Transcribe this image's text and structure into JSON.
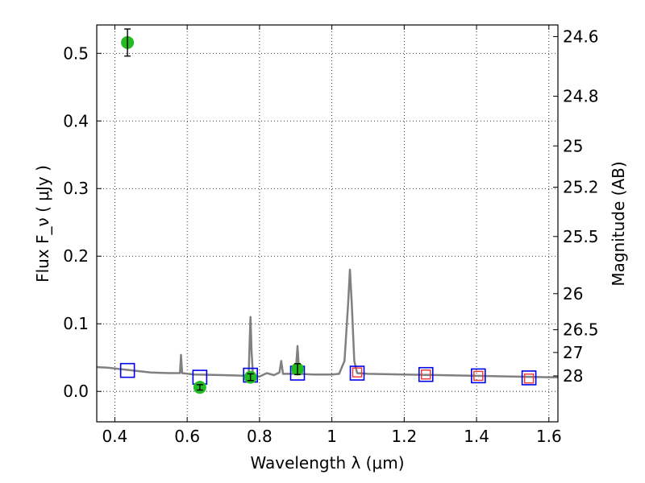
{
  "chart_data": {
    "type": "scatter",
    "xlabel": "Wavelength  λ (μm)",
    "ylabel_left": "Flux  F_ν  ( μJy )",
    "ylabel_right": "Magnitude (AB)",
    "xlim": [
      0.35,
      1.625
    ],
    "ylim": [
      -0.045,
      0.542
    ],
    "grid": true,
    "x_ticks": [
      {
        "value": 0.4,
        "label": "0.4"
      },
      {
        "value": 0.6,
        "label": "0.6"
      },
      {
        "value": 0.8,
        "label": "0.8"
      },
      {
        "value": 1.0,
        "label": "1"
      },
      {
        "value": 1.2,
        "label": "1.2"
      },
      {
        "value": 1.4,
        "label": "1.4"
      },
      {
        "value": 1.6,
        "label": "1.6"
      }
    ],
    "y_ticks": [
      {
        "value": 0.0,
        "label": "0.0"
      },
      {
        "value": 0.1,
        "label": "0.1"
      },
      {
        "value": 0.2,
        "label": "0.2"
      },
      {
        "value": 0.3,
        "label": "0.3"
      },
      {
        "value": 0.4,
        "label": "0.4"
      },
      {
        "value": 0.5,
        "label": "0.5"
      }
    ],
    "mag_ticks": [
      {
        "value": 24.6,
        "label": "24.6"
      },
      {
        "value": 24.8,
        "label": "24.8"
      },
      {
        "value": 25.0,
        "label": "25"
      },
      {
        "value": 25.2,
        "label": "25.2"
      },
      {
        "value": 25.5,
        "label": "25.5"
      },
      {
        "value": 26.0,
        "label": "26"
      },
      {
        "value": 26.5,
        "label": "26.5"
      },
      {
        "value": 27.0,
        "label": "27"
      },
      {
        "value": 28.0,
        "label": "28"
      }
    ],
    "model_spectrum": {
      "color": "#808080",
      "points": [
        [
          0.35,
          0.036
        ],
        [
          0.38,
          0.035
        ],
        [
          0.4,
          0.034
        ],
        [
          0.45,
          0.031
        ],
        [
          0.5,
          0.028
        ],
        [
          0.55,
          0.027
        ],
        [
          0.58,
          0.027
        ],
        [
          0.583,
          0.054
        ],
        [
          0.586,
          0.027
        ],
        [
          0.62,
          0.025
        ],
        [
          0.7,
          0.024
        ],
        [
          0.77,
          0.023
        ],
        [
          0.772,
          0.06
        ],
        [
          0.775,
          0.11
        ],
        [
          0.778,
          0.06
        ],
        [
          0.782,
          0.023
        ],
        [
          0.8,
          0.022
        ],
        [
          0.82,
          0.027
        ],
        [
          0.84,
          0.024
        ],
        [
          0.855,
          0.028
        ],
        [
          0.86,
          0.045
        ],
        [
          0.865,
          0.026
        ],
        [
          0.9,
          0.026
        ],
        [
          0.905,
          0.067
        ],
        [
          0.91,
          0.026
        ],
        [
          0.95,
          0.025
        ],
        [
          1.0,
          0.025
        ],
        [
          1.02,
          0.026
        ],
        [
          1.035,
          0.045
        ],
        [
          1.045,
          0.13
        ],
        [
          1.05,
          0.18
        ],
        [
          1.055,
          0.13
        ],
        [
          1.062,
          0.045
        ],
        [
          1.07,
          0.027
        ],
        [
          1.1,
          0.026
        ],
        [
          1.2,
          0.025
        ],
        [
          1.3,
          0.024
        ],
        [
          1.4,
          0.023
        ],
        [
          1.5,
          0.022
        ],
        [
          1.6,
          0.021
        ],
        [
          1.625,
          0.021
        ]
      ]
    },
    "observed_points": {
      "color": "#22bb22",
      "points": [
        {
          "x": 0.435,
          "y": 0.516,
          "yerr": 0.02
        },
        {
          "x": 0.635,
          "y": 0.006,
          "yerr": 0.004
        },
        {
          "x": 0.775,
          "y": 0.021,
          "yerr": 0.005
        },
        {
          "x": 0.905,
          "y": 0.033,
          "yerr": 0.008
        }
      ]
    },
    "model_photometry_blue": {
      "color": "#0000ee",
      "points": [
        {
          "x": 0.435,
          "y": 0.031
        },
        {
          "x": 0.635,
          "y": 0.021
        },
        {
          "x": 0.775,
          "y": 0.024
        },
        {
          "x": 0.905,
          "y": 0.027
        },
        {
          "x": 1.07,
          "y": 0.027
        },
        {
          "x": 1.26,
          "y": 0.025
        },
        {
          "x": 1.405,
          "y": 0.023
        },
        {
          "x": 1.545,
          "y": 0.02
        }
      ]
    },
    "model_photometry_red": {
      "color": "#ee3333",
      "points": [
        {
          "x": 1.07,
          "y": 0.028
        },
        {
          "x": 1.26,
          "y": 0.025
        },
        {
          "x": 1.405,
          "y": 0.023
        },
        {
          "x": 1.545,
          "y": 0.019
        }
      ]
    }
  }
}
